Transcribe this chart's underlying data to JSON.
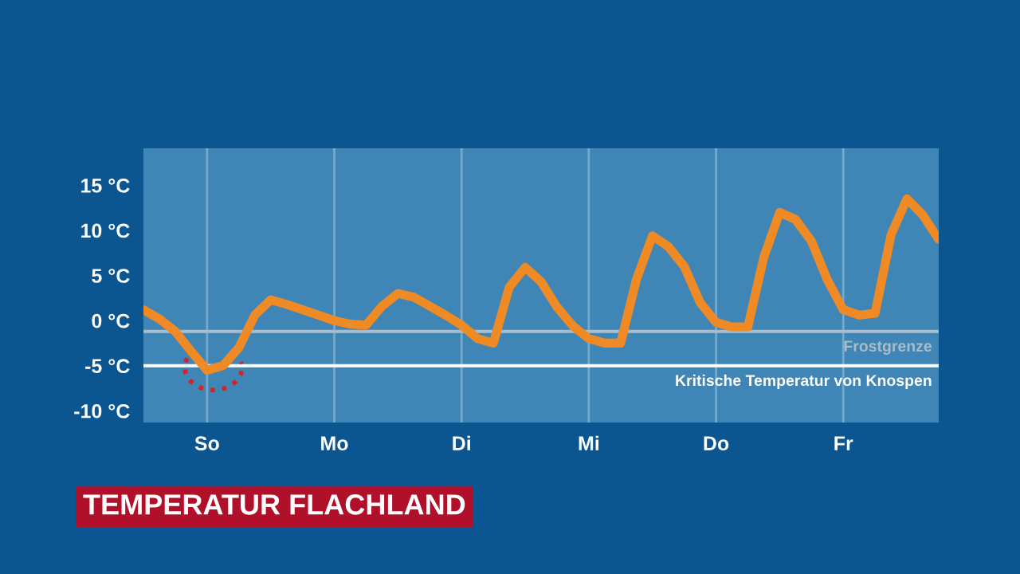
{
  "chart_data": {
    "type": "line",
    "title": "TEMPERATUR FLACHLAND",
    "categories": [
      null,
      null,
      null,
      null,
      "So",
      null,
      null,
      null,
      null,
      null,
      null,
      null,
      "Mo",
      null,
      null,
      null,
      null,
      null,
      null,
      null,
      "Di",
      null,
      null,
      null,
      null,
      null,
      null,
      null,
      "Mi",
      null,
      null,
      null,
      null,
      null,
      null,
      null,
      "Do",
      null,
      null,
      null,
      null,
      null,
      null,
      null,
      "Fr",
      null,
      null,
      null,
      null,
      null,
      null
    ],
    "series": [
      {
        "color": "#f08a24",
        "values": [
          1.2,
          0.2,
          -1.2,
          -3.4,
          -5.5,
          -5.0,
          -3.0,
          0.6,
          2.3,
          1.8,
          1.2,
          0.6,
          0,
          -0.4,
          -0.5,
          1.6,
          3.0,
          2.6,
          1.6,
          0.6,
          -0.5,
          -2.0,
          -2.5,
          3.7,
          5.9,
          4.3,
          1.5,
          -0.6,
          -2.0,
          -2.5,
          -2.5,
          4.6,
          9.4,
          8.2,
          6.0,
          2.0,
          -0.2,
          -0.7,
          -0.7,
          7.0,
          12.0,
          11.2,
          8.8,
          4.5,
          1.2,
          0.6,
          0.8,
          9.5,
          13.5,
          11.7,
          9.0
        ]
      }
    ],
    "ylim": [
      -11.3,
      19.1
    ],
    "yticks": [
      {
        "value": -10,
        "label": "-10 °C"
      },
      {
        "value": -5,
        "label": "-5 °C"
      },
      {
        "value": 0,
        "label": "0 °C"
      },
      {
        "value": 5,
        "label": "5 °C"
      },
      {
        "value": 10,
        "label": "10 °C"
      },
      {
        "value": 15,
        "label": "15 °C"
      }
    ],
    "ref_lines": [
      {
        "axis": "y",
        "value": -1.2,
        "label": "Frostgrenze",
        "color": "#a9bccb"
      },
      {
        "axis": "y",
        "value": -5,
        "label": "Kritische Temperatur von Knospen",
        "color": "#ffffff"
      }
    ],
    "grid": "x",
    "marker": "none",
    "line_style": "solid"
  }
}
